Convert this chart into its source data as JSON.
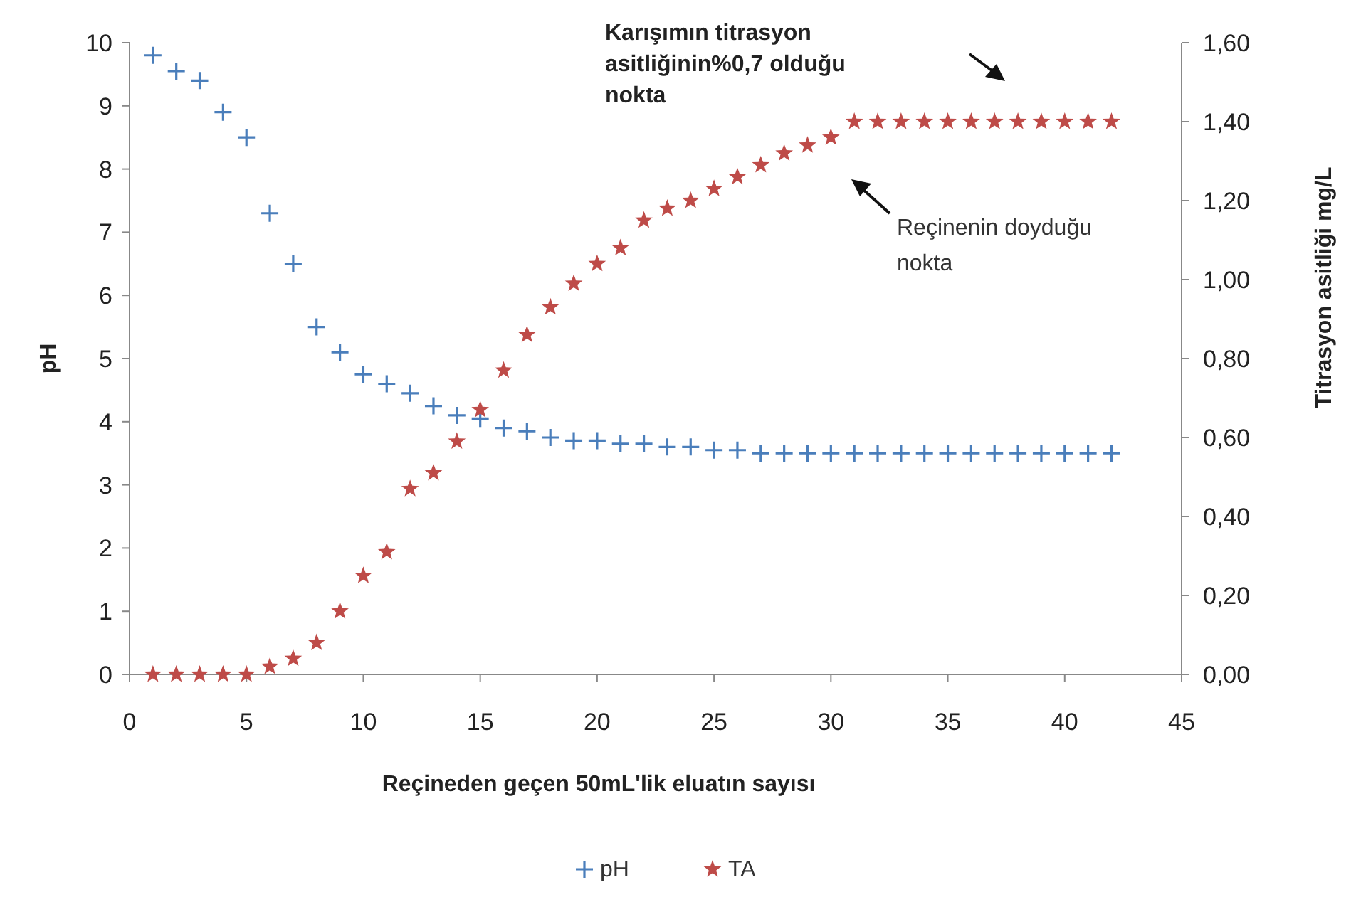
{
  "chart_data": {
    "type": "scatter",
    "xlabel": "Reçineden geçen 50mL'lik eluatın sayısı",
    "ylabel": "pH",
    "y2label": "Titrasyon asitliği  mg/L",
    "x": [
      1,
      2,
      3,
      4,
      5,
      6,
      7,
      8,
      9,
      10,
      11,
      12,
      13,
      14,
      15,
      16,
      17,
      18,
      19,
      20,
      21,
      22,
      23,
      24,
      25,
      26,
      27,
      28,
      29,
      30,
      31,
      32,
      33,
      34,
      35,
      36,
      37,
      38,
      39,
      40,
      41,
      42
    ],
    "series": [
      {
        "name": "pH",
        "color": "#4a7ebb",
        "marker": "cross",
        "values": [
          9.8,
          9.55,
          9.4,
          8.9,
          8.5,
          7.3,
          6.5,
          5.5,
          5.1,
          4.75,
          4.6,
          4.45,
          4.25,
          4.1,
          4.05,
          3.9,
          3.85,
          3.75,
          3.7,
          3.7,
          3.65,
          3.65,
          3.6,
          3.6,
          3.55,
          3.55,
          3.5,
          3.5,
          3.5,
          3.5,
          3.5,
          3.5,
          3.5,
          3.5,
          3.5,
          3.5,
          3.5,
          3.5,
          3.5,
          3.5,
          3.5,
          3.5
        ]
      },
      {
        "name": "TA",
        "color": "#be4b48",
        "marker": "star",
        "axis": "y2",
        "values": [
          0,
          0,
          0,
          0,
          0,
          0.02,
          0.04,
          0.08,
          0.16,
          0.25,
          0.31,
          0.47,
          0.51,
          0.59,
          0.67,
          0.77,
          0.86,
          0.93,
          0.99,
          1.04,
          1.08,
          1.15,
          1.18,
          1.2,
          1.23,
          1.26,
          1.29,
          1.32,
          1.34,
          1.36,
          1.4,
          1.4,
          1.4,
          1.4,
          1.4,
          1.4,
          1.4,
          1.4,
          1.4,
          1.4,
          1.4,
          1.4
        ]
      }
    ],
    "xlim": [
      0,
      45
    ],
    "xticks": [
      0,
      5,
      10,
      15,
      20,
      25,
      30,
      35,
      40,
      45
    ],
    "ylim": [
      0,
      10
    ],
    "yticks": [
      0,
      1,
      2,
      3,
      4,
      5,
      6,
      7,
      8,
      9,
      10
    ],
    "y2lim": [
      0,
      1.6
    ],
    "y2ticks": [
      {
        "value": 0,
        "label": "0,00"
      },
      {
        "value": 0.2,
        "label": "0,20"
      },
      {
        "value": 0.4,
        "label": "0,40"
      },
      {
        "value": 0.6,
        "label": "0,60"
      },
      {
        "value": 0.8,
        "label": "0,80"
      },
      {
        "value": 1,
        "label": "1,00"
      },
      {
        "value": 1.2,
        "label": "1,20"
      },
      {
        "value": 1.4,
        "label": "1,40"
      },
      {
        "value": 1.6,
        "label": "1,60"
      }
    ],
    "annotations": [
      "Karışımın titrasyon asitliğinin%0,7 olduğu nokta",
      "Reçinenin doyduğu nokta"
    ],
    "legend": "bottom",
    "grid": false
  }
}
